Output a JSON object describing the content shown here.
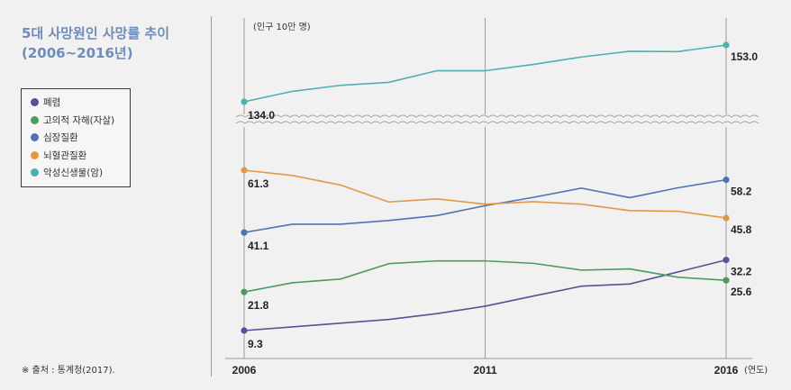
{
  "title": {
    "line1": "5대 사망원인 사망률 추이",
    "line2": "(2006~2016년)"
  },
  "source": "※ 출처 : 통계청(2017).",
  "chart_data": {
    "type": "line",
    "unit": "(인구 10만 명)",
    "x_unit": "(연도)",
    "x_ticks": [
      "2006",
      "2011",
      "2016"
    ],
    "x": [
      2006,
      2007,
      2008,
      2009,
      2010,
      2011,
      2012,
      2013,
      2014,
      2015,
      2016
    ],
    "axis_break": true,
    "series": [
      {
        "name": "폐렴",
        "color": "#5b4f98",
        "values": [
          9.3,
          10.5,
          11.7,
          12.9,
          14.8,
          17.2,
          20.5,
          23.7,
          24.4,
          28.3,
          32.2
        ],
        "start_label": "9.3",
        "end_label": "32.2"
      },
      {
        "name": "고의적 자해(자살)",
        "color": "#4f9a60",
        "values": [
          21.8,
          24.8,
          26.0,
          31.0,
          31.9,
          31.9,
          31.1,
          28.9,
          29.3,
          26.6,
          25.6
        ],
        "start_label": "21.8",
        "end_label": "25.6"
      },
      {
        "name": "심장질환",
        "color": "#4f72b5",
        "values": [
          41.1,
          43.8,
          43.8,
          45.0,
          46.6,
          49.8,
          52.5,
          55.5,
          52.4,
          55.6,
          58.2
        ],
        "start_label": "41.1",
        "end_label": "58.2"
      },
      {
        "name": "뇌혈관질환",
        "color": "#e09a45",
        "values": [
          61.3,
          59.6,
          56.5,
          51.0,
          52.0,
          50.3,
          51.1,
          50.3,
          48.2,
          48.0,
          45.8
        ],
        "start_label": "61.3",
        "end_label": "45.8"
      },
      {
        "name": "악성신생물(암)",
        "color": "#4eb0ae",
        "values": [
          134.0,
          137.5,
          139.5,
          140.5,
          144.4,
          144.4,
          146.5,
          149.0,
          150.9,
          150.8,
          153.0
        ],
        "start_label": "134.0",
        "end_label": "153.0"
      }
    ]
  }
}
